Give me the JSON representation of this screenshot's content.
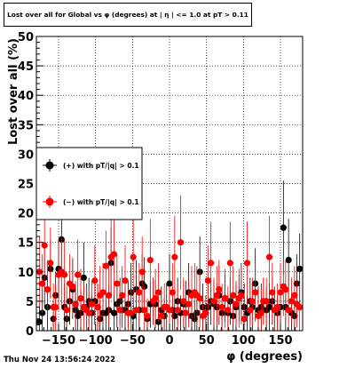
{
  "title": "Lost over all for Global vs φ (degrees) at | η | <= 1.0 at pT > 0.11",
  "timestamp": "Thu Nov 24 13:56:24 2022",
  "colors": {
    "plus": "#000000",
    "minus": "#ff0000",
    "grid": "#000000",
    "background": "#ffffff"
  },
  "chart_data": {
    "type": "scatter",
    "title": "Lost over all for Global vs φ (degrees) at | η | <= 1.0 at pT > 0.11",
    "xlabel": "φ (degrees)",
    "ylabel": "Lost over all (%)",
    "xlim": [
      -180,
      180
    ],
    "ylim": [
      0,
      50
    ],
    "x_ticks": [
      -150,
      -100,
      -50,
      0,
      50,
      100,
      150
    ],
    "x_tick_labels": [
      "−150",
      "−100",
      "−50",
      "0",
      "50",
      "100",
      "150"
    ],
    "y_ticks": [
      0,
      5,
      10,
      15,
      20,
      25,
      30,
      35,
      40,
      45,
      50
    ],
    "y_tick_labels": [
      "0",
      "5",
      "10",
      "15",
      "20",
      "25",
      "30",
      "35",
      "40",
      "45",
      "50"
    ],
    "grid": true,
    "legend_position": "left-middle",
    "series": [
      {
        "name": "(+) with pT/|q| > 0.1",
        "color": "#000000",
        "points": [
          [
            -176,
            1.5,
            3
          ],
          [
            -172,
            3,
            4
          ],
          [
            -169,
            9,
            5
          ],
          [
            -165,
            4,
            5
          ],
          [
            -161,
            10.5,
            5
          ],
          [
            -157,
            2,
            3
          ],
          [
            -154,
            6,
            4
          ],
          [
            -150,
            10.5,
            5
          ],
          [
            -146,
            15.5,
            6
          ],
          [
            -142,
            4,
            4
          ],
          [
            -139,
            2,
            3
          ],
          [
            -135,
            5,
            4
          ],
          [
            -131,
            7,
            5
          ],
          [
            -127,
            3.5,
            4
          ],
          [
            -124,
            2.5,
            3
          ],
          [
            -120,
            3,
            4
          ],
          [
            -116,
            9,
            6
          ],
          [
            -112,
            4,
            4
          ],
          [
            -109,
            5,
            4
          ],
          [
            -105,
            3,
            3
          ],
          [
            -101,
            5,
            4
          ],
          [
            -97,
            4,
            4
          ],
          [
            -94,
            2,
            3
          ],
          [
            -90,
            3,
            3
          ],
          [
            -86,
            3,
            4
          ],
          [
            -82,
            3.5,
            4
          ],
          [
            -79,
            11.5,
            6
          ],
          [
            -75,
            3,
            3
          ],
          [
            -71,
            4.5,
            4
          ],
          [
            -67,
            5,
            4
          ],
          [
            -64,
            3.5,
            3
          ],
          [
            -60,
            3.5,
            4
          ],
          [
            -56,
            4.5,
            4
          ],
          [
            -52,
            6.5,
            5
          ],
          [
            -49,
            2.5,
            3
          ],
          [
            -45,
            7,
            5
          ],
          [
            -41,
            3.5,
            4
          ],
          [
            -37,
            8,
            5
          ],
          [
            -34,
            7.5,
            5
          ],
          [
            -30,
            2,
            3
          ],
          [
            -26,
            4.5,
            4
          ],
          [
            -22,
            5,
            4
          ],
          [
            -19,
            4.5,
            4
          ],
          [
            -15,
            1.5,
            3
          ],
          [
            -11,
            3.5,
            4
          ],
          [
            -7,
            2.5,
            3
          ],
          [
            -4,
            4,
            4
          ],
          [
            0,
            8,
            5
          ],
          [
            4,
            3.5,
            4
          ],
          [
            7,
            2.5,
            3
          ],
          [
            11,
            5,
            4
          ],
          [
            15,
            3,
            3
          ],
          [
            19,
            4.5,
            4
          ],
          [
            22,
            4.5,
            4
          ],
          [
            26,
            6.5,
            5
          ],
          [
            30,
            2.5,
            3
          ],
          [
            34,
            2,
            3
          ],
          [
            37,
            3,
            3
          ],
          [
            41,
            10,
            6
          ],
          [
            45,
            4,
            4
          ],
          [
            49,
            3,
            3
          ],
          [
            52,
            4,
            4
          ],
          [
            56,
            5,
            4
          ],
          [
            60,
            4.5,
            4
          ],
          [
            64,
            4,
            4
          ],
          [
            67,
            6,
            5
          ],
          [
            71,
            3,
            3
          ],
          [
            75,
            5.5,
            4
          ],
          [
            79,
            3,
            3
          ],
          [
            82,
            5,
            4
          ],
          [
            86,
            2.5,
            3
          ],
          [
            90,
            4,
            4
          ],
          [
            94,
            5.5,
            4
          ],
          [
            97,
            6.5,
            5
          ],
          [
            101,
            4,
            4
          ],
          [
            105,
            3,
            3
          ],
          [
            109,
            5,
            4
          ],
          [
            112,
            4,
            4
          ],
          [
            116,
            8,
            6
          ],
          [
            120,
            3.5,
            4
          ],
          [
            124,
            4,
            4
          ],
          [
            127,
            5,
            4
          ],
          [
            131,
            3.5,
            4
          ],
          [
            135,
            4,
            4
          ],
          [
            139,
            5,
            4
          ],
          [
            142,
            3.5,
            4
          ],
          [
            146,
            3,
            3
          ],
          [
            150,
            4,
            4
          ],
          [
            154,
            17.5,
            8
          ],
          [
            157,
            4,
            4
          ],
          [
            161,
            12,
            7
          ],
          [
            165,
            3,
            3
          ],
          [
            169,
            2.5,
            3
          ],
          [
            172,
            8,
            5
          ],
          [
            176,
            10.5,
            6
          ]
        ]
      },
      {
        "name": "(−) with pT/|q| > 0.1",
        "color": "#ff0000",
        "points": [
          [
            -176,
            10,
            6
          ],
          [
            -172,
            8,
            5
          ],
          [
            -169,
            14.5,
            7
          ],
          [
            -165,
            7,
            5
          ],
          [
            -161,
            11.5,
            6
          ],
          [
            -157,
            4,
            4
          ],
          [
            -154,
            4,
            4
          ],
          [
            -150,
            9.5,
            6
          ],
          [
            -146,
            10,
            6
          ],
          [
            -142,
            9.5,
            6
          ],
          [
            -139,
            3.5,
            4
          ],
          [
            -135,
            8,
            5
          ],
          [
            -131,
            7.5,
            5
          ],
          [
            -127,
            4.5,
            4
          ],
          [
            -124,
            9.5,
            6
          ],
          [
            -120,
            5.5,
            5
          ],
          [
            -116,
            4,
            4
          ],
          [
            -112,
            3.5,
            4
          ],
          [
            -109,
            3,
            4
          ],
          [
            -105,
            4.5,
            4
          ],
          [
            -101,
            8.5,
            6
          ],
          [
            -97,
            4,
            4
          ],
          [
            -94,
            6,
            5
          ],
          [
            -90,
            6.5,
            5
          ],
          [
            -86,
            11,
            6
          ],
          [
            -82,
            6,
            5
          ],
          [
            -79,
            12.5,
            7
          ],
          [
            -75,
            13,
            7
          ],
          [
            -71,
            8,
            5
          ],
          [
            -67,
            3.5,
            4
          ],
          [
            -64,
            6,
            5
          ],
          [
            -60,
            8.5,
            6
          ],
          [
            -56,
            3,
            4
          ],
          [
            -52,
            3,
            4
          ],
          [
            -49,
            12.5,
            7
          ],
          [
            -45,
            3.5,
            4
          ],
          [
            -41,
            6.5,
            5
          ],
          [
            -37,
            10,
            6
          ],
          [
            -34,
            3.5,
            4
          ],
          [
            -30,
            2.5,
            3
          ],
          [
            -26,
            12,
            7
          ],
          [
            -22,
            5,
            4
          ],
          [
            -19,
            5.5,
            5
          ],
          [
            -15,
            6.5,
            5
          ],
          [
            -11,
            2.5,
            3
          ],
          [
            -7,
            4,
            4
          ],
          [
            -4,
            4,
            4
          ],
          [
            0,
            3.5,
            4
          ],
          [
            4,
            6.5,
            5
          ],
          [
            7,
            12.5,
            7
          ],
          [
            11,
            3.5,
            4
          ],
          [
            15,
            15,
            8
          ],
          [
            19,
            5,
            4
          ],
          [
            22,
            3,
            3
          ],
          [
            26,
            4.5,
            4
          ],
          [
            30,
            6,
            5
          ],
          [
            34,
            6.5,
            5
          ],
          [
            37,
            6,
            5
          ],
          [
            41,
            5.5,
            5
          ],
          [
            45,
            2.5,
            3
          ],
          [
            49,
            3,
            3
          ],
          [
            52,
            8.5,
            6
          ],
          [
            56,
            11.5,
            7
          ],
          [
            60,
            5,
            4
          ],
          [
            64,
            6,
            5
          ],
          [
            67,
            7,
            5
          ],
          [
            71,
            4,
            4
          ],
          [
            75,
            5.5,
            5
          ],
          [
            79,
            3.5,
            4
          ],
          [
            82,
            11.5,
            7
          ],
          [
            86,
            6,
            5
          ],
          [
            90,
            4.5,
            4
          ],
          [
            94,
            5.5,
            5
          ],
          [
            97,
            6,
            5
          ],
          [
            101,
            2,
            3
          ],
          [
            105,
            11.5,
            7
          ],
          [
            109,
            3.5,
            4
          ],
          [
            112,
            5,
            4
          ],
          [
            116,
            6.5,
            5
          ],
          [
            120,
            2.5,
            3
          ],
          [
            124,
            3,
            4
          ],
          [
            127,
            5,
            4
          ],
          [
            131,
            5,
            4
          ],
          [
            135,
            12.5,
            7
          ],
          [
            139,
            6.5,
            5
          ],
          [
            142,
            3.5,
            4
          ],
          [
            146,
            4,
            4
          ],
          [
            150,
            6.5,
            5
          ],
          [
            154,
            7.5,
            5
          ],
          [
            157,
            7,
            5
          ],
          [
            161,
            3.5,
            4
          ],
          [
            165,
            5,
            4
          ],
          [
            169,
            6,
            5
          ],
          [
            172,
            4.5,
            4
          ],
          [
            176,
            4,
            4
          ]
        ]
      }
    ]
  }
}
